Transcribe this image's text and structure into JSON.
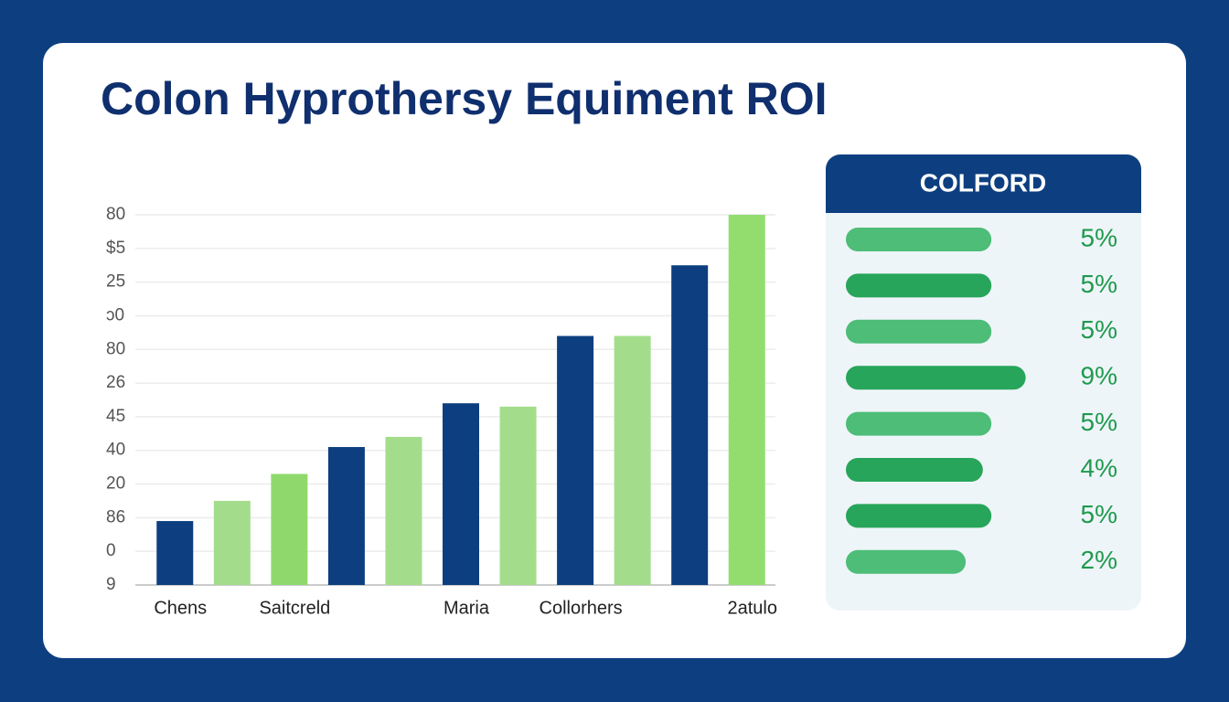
{
  "chart_data": [
    {
      "type": "bar",
      "title": "Colon Hyprothersy Equiment ROI",
      "categories": [
        "Chens",
        null,
        "Saitcreld",
        null,
        null,
        "Maria",
        null,
        "Collorhers",
        null,
        null,
        "2atulo"
      ],
      "values": [
        1.9,
        2.5,
        3.3,
        4.1,
        4.4,
        5.4,
        5.3,
        7.4,
        7.4,
        9.5,
        11.0
      ],
      "colors": [
        "#0d3f80",
        "#a3dd8b",
        "#8fd96c",
        "#0d3f80",
        "#a3dd8b",
        "#0d3f80",
        "#a3dd8b",
        "#0d3f80",
        "#a3dd8b",
        "#0d3f80",
        "#93dd6f"
      ],
      "ylim": [
        0,
        11
      ],
      "yticks": [
        {
          "value": 11,
          "label": "80"
        },
        {
          "value": 10,
          "label": "$5"
        },
        {
          "value": 9,
          "label": "25"
        },
        {
          "value": 8,
          "label": "ↄ0"
        },
        {
          "value": 7,
          "label": "80"
        },
        {
          "value": 6,
          "label": "26"
        },
        {
          "value": 5,
          "label": "45"
        },
        {
          "value": 4,
          "label": "40"
        },
        {
          "value": 3,
          "label": "20"
        },
        {
          "value": 2,
          "label": "86"
        },
        {
          "value": 1,
          "label": "0"
        },
        {
          "value": 0,
          "label": "9"
        }
      ],
      "grid": true
    },
    {
      "type": "hbar",
      "title": "COLFORD",
      "values": [
        5,
        5,
        5,
        9,
        5,
        4,
        5,
        2
      ],
      "value_labels": [
        "5%",
        "5%",
        "5%",
        "9%",
        "5%",
        "4%",
        "5%",
        "2%"
      ],
      "colors": [
        "#4dbd78",
        "#27a55a",
        "#4dbd78",
        "#27a55a",
        "#4dbd78",
        "#27a55a",
        "#27a55a",
        "#4dbd78"
      ],
      "xlim": [
        -12,
        10
      ]
    }
  ]
}
